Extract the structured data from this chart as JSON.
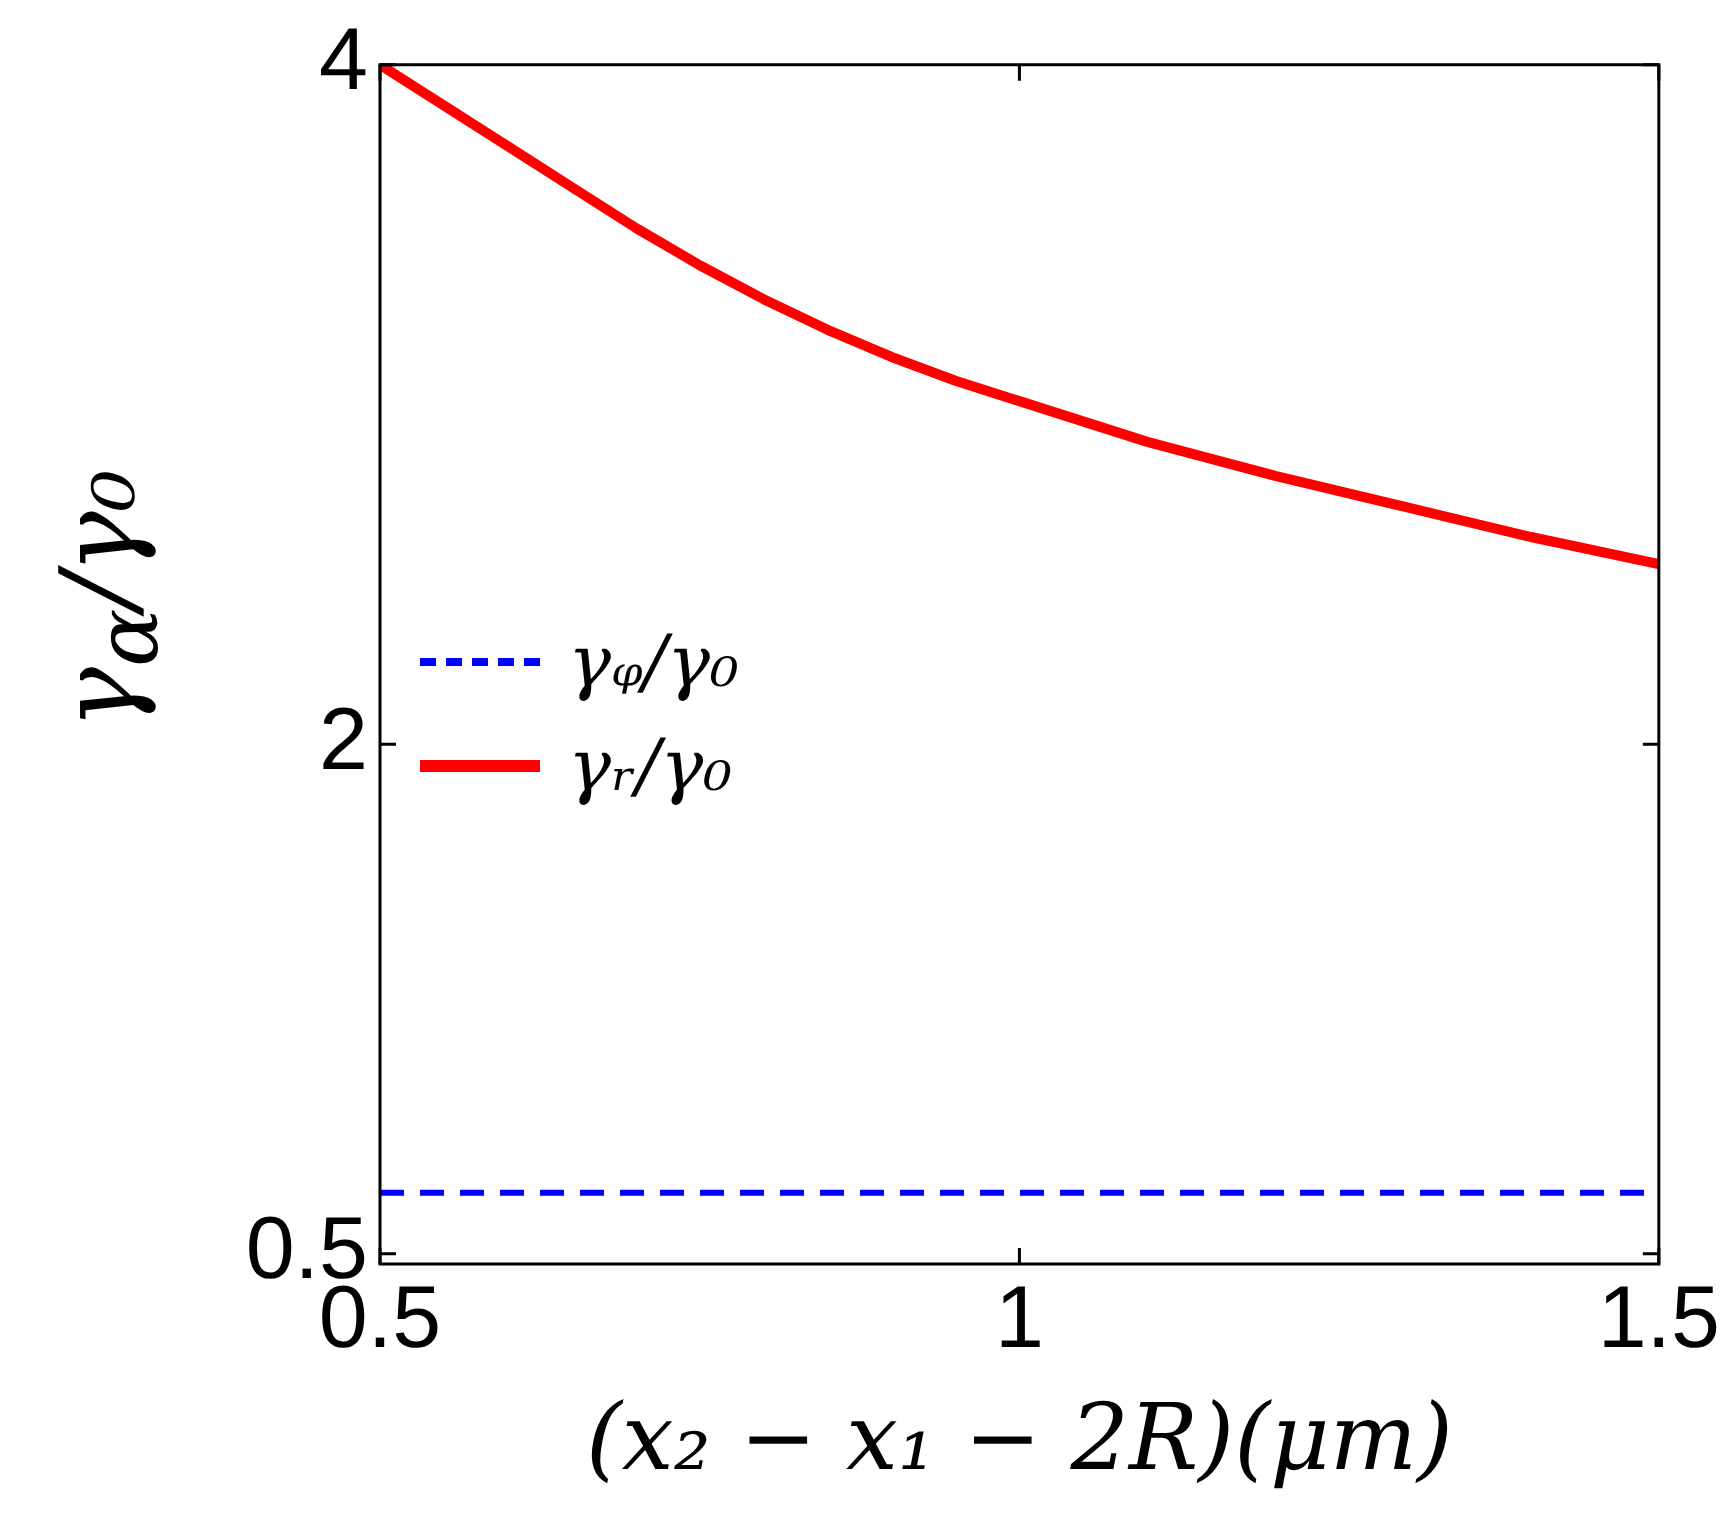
{
  "chart_data": {
    "type": "line",
    "xlabel": "(x₂ − x₁ − 2R)(μm)",
    "ylabel": "γ$_{α}$/γ₀",
    "xlim": [
      0.5,
      1.5
    ],
    "xticks": [
      0.5,
      1,
      1.5
    ],
    "ylim": [
      0.47,
      4
    ],
    "yticks": [
      0.5,
      2,
      4
    ],
    "grid": false,
    "legend": "left",
    "marker": "none",
    "series": [
      {
        "name": "γᵩ/γ₀",
        "color": "#0000ff",
        "line_style": "dashed",
        "x": [
          0.5,
          1.5
        ],
        "values": [
          0.68,
          0.68
        ]
      },
      {
        "name": "γᵣ/γ₀",
        "color": "#ff0000",
        "line_style": "solid",
        "x": [
          0.5,
          0.55,
          0.6,
          0.65,
          0.7,
          0.75,
          0.8,
          0.85,
          0.9,
          0.95,
          1.0,
          1.1,
          1.2,
          1.3,
          1.4,
          1.5
        ],
        "values": [
          4.0,
          3.88,
          3.76,
          3.64,
          3.52,
          3.41,
          3.31,
          3.22,
          3.14,
          3.07,
          3.01,
          2.89,
          2.79,
          2.7,
          2.61,
          2.53
        ]
      }
    ]
  }
}
